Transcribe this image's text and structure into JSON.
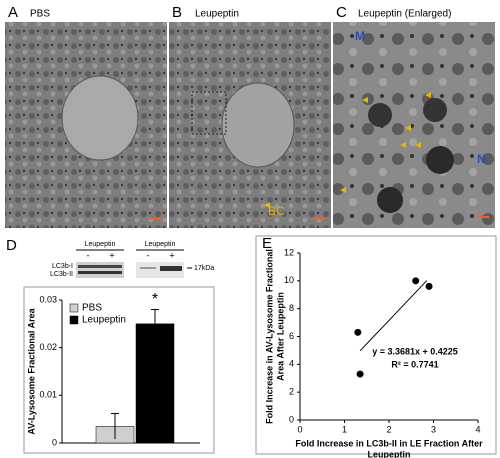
{
  "panels": {
    "letters": [
      "A",
      "B",
      "C",
      "D",
      "E"
    ],
    "image_labels": [
      "PBS",
      "Leupeptin",
      "Leupeptin (Enlarged)"
    ],
    "annotations": [
      "BC",
      "M",
      "N"
    ]
  },
  "blot": {
    "groups": [
      {
        "label": "Leupeptin",
        "lanes": [
          "-",
          "+"
        ]
      },
      {
        "label": "Leupeptin",
        "lanes": [
          "-",
          "+"
        ]
      }
    ],
    "bands": [
      "LC3b-I",
      "LC3b-II"
    ],
    "marker": "17kDa"
  },
  "chart_data": [
    {
      "type": "bar",
      "y_label": "AV-Lysosome Fractional Area",
      "categories": [
        null
      ],
      "series": [
        {
          "name": "PBS",
          "color": "#cfcfcf",
          "values": [
            0.0035
          ],
          "errors": [
            0.0027
          ]
        },
        {
          "name": "Leupeptin",
          "color": "#000000",
          "values": [
            0.025
          ],
          "errors": [
            0.003
          ]
        }
      ],
      "annotation": "*",
      "ylim": [
        0,
        0.03
      ],
      "yticks": [
        0,
        0.01,
        0.02,
        0.03
      ],
      "legend": "upper-left"
    },
    {
      "type": "scatter",
      "x_label": [
        "Fold Increase in LC3b-II in LE Fraction After",
        "Leupeptin"
      ],
      "y_label": [
        "Fold Increase in AV-Lysosome Fractional",
        "Area After Leupeptin"
      ],
      "x": [
        1.3,
        1.35,
        2.6,
        2.9
      ],
      "values": [
        6.3,
        3.3,
        10,
        9.6
      ],
      "color": "#000000",
      "trendline": {
        "slope": 3.3681,
        "intercept": 0.4225,
        "x": [
          1.35,
          2.85
        ]
      },
      "annotations": [
        "y = 3.3681x + 0.4225",
        "R² = 0.7741"
      ],
      "xlim": [
        0,
        4
      ],
      "xticks": [
        0,
        1,
        2,
        3,
        4
      ],
      "ylim": [
        0,
        12
      ],
      "yticks": [
        0,
        2,
        4,
        6,
        8,
        10,
        12
      ]
    }
  ]
}
